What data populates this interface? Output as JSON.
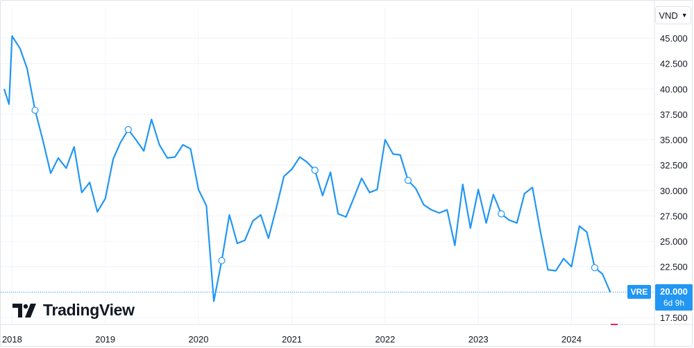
{
  "currency": {
    "label": "VND",
    "icon": "chevron-down-icon"
  },
  "symbol": "VRE",
  "last_price": {
    "value": "20.000",
    "countdown": "6d 9h"
  },
  "logo": {
    "text": "TradingView",
    "icon": "tradingview-logo-icon"
  },
  "colors": {
    "line": "#2196f3",
    "price_tag": "#2196f3",
    "marker_fill": "#ffffff",
    "text": "#131722",
    "grid": "#f0f3fa"
  },
  "chart_data": {
    "type": "line",
    "title": "",
    "xlabel": "",
    "ylabel": "",
    "y_ticks": [
      "45.000",
      "42.500",
      "40.000",
      "37.500",
      "35.000",
      "32.500",
      "30.000",
      "27.500",
      "25.000",
      "22.500",
      "20.000",
      "17.500"
    ],
    "x_ticks": [
      "2018",
      "2019",
      "2020",
      "2021",
      "2022",
      "2023",
      "2024"
    ],
    "x_range": [
      "2017-12-01",
      "2024-08-15"
    ],
    "ylim": [
      16700,
      46800
    ],
    "grid": true,
    "last_value": 20000,
    "series": [
      {
        "points": [
          [
            "2017-12-01",
            40000
          ],
          [
            "2017-12-20",
            38500
          ],
          [
            "2018-01-01",
            45200
          ],
          [
            "2018-02-01",
            44000
          ],
          [
            "2018-03-01",
            42000
          ],
          [
            "2018-04-01",
            37900
          ],
          [
            "2018-05-01",
            35000
          ],
          [
            "2018-06-01",
            31700
          ],
          [
            "2018-07-01",
            33200
          ],
          [
            "2018-08-01",
            32200
          ],
          [
            "2018-09-01",
            34300
          ],
          [
            "2018-10-01",
            29800
          ],
          [
            "2018-11-01",
            30800
          ],
          [
            "2018-12-01",
            27900
          ],
          [
            "2019-01-01",
            29200
          ],
          [
            "2019-02-01",
            33100
          ],
          [
            "2019-03-01",
            34700
          ],
          [
            "2019-04-01",
            36000
          ],
          [
            "2019-05-01",
            35000
          ],
          [
            "2019-06-01",
            33900
          ],
          [
            "2019-07-01",
            37000
          ],
          [
            "2019-08-01",
            34500
          ],
          [
            "2019-09-01",
            33200
          ],
          [
            "2019-10-01",
            33300
          ],
          [
            "2019-11-01",
            34500
          ],
          [
            "2019-12-01",
            34100
          ],
          [
            "2020-01-01",
            30100
          ],
          [
            "2020-02-01",
            28500
          ],
          [
            "2020-03-01",
            19100
          ],
          [
            "2020-04-01",
            23100
          ],
          [
            "2020-05-01",
            27600
          ],
          [
            "2020-06-01",
            24800
          ],
          [
            "2020-07-01",
            25100
          ],
          [
            "2020-08-01",
            27000
          ],
          [
            "2020-09-01",
            27600
          ],
          [
            "2020-10-01",
            25300
          ],
          [
            "2020-11-01",
            28300
          ],
          [
            "2020-12-01",
            31400
          ],
          [
            "2021-01-01",
            32100
          ],
          [
            "2021-02-01",
            33300
          ],
          [
            "2021-03-01",
            32800
          ],
          [
            "2021-04-01",
            32000
          ],
          [
            "2021-05-01",
            29500
          ],
          [
            "2021-06-01",
            31800
          ],
          [
            "2021-07-01",
            27700
          ],
          [
            "2021-08-01",
            27400
          ],
          [
            "2021-09-01",
            29300
          ],
          [
            "2021-10-01",
            31200
          ],
          [
            "2021-11-01",
            29800
          ],
          [
            "2021-12-01",
            30100
          ],
          [
            "2022-01-01",
            35000
          ],
          [
            "2022-02-01",
            33600
          ],
          [
            "2022-03-01",
            33500
          ],
          [
            "2022-04-01",
            31000
          ],
          [
            "2022-05-01",
            30200
          ],
          [
            "2022-06-01",
            28600
          ],
          [
            "2022-07-01",
            28100
          ],
          [
            "2022-08-01",
            27800
          ],
          [
            "2022-09-01",
            28100
          ],
          [
            "2022-10-01",
            24600
          ],
          [
            "2022-11-01",
            30600
          ],
          [
            "2022-12-01",
            26300
          ],
          [
            "2023-01-01",
            30100
          ],
          [
            "2023-02-01",
            26800
          ],
          [
            "2023-03-01",
            29600
          ],
          [
            "2023-04-01",
            27700
          ],
          [
            "2023-05-01",
            27100
          ],
          [
            "2023-06-01",
            26800
          ],
          [
            "2023-07-01",
            29700
          ],
          [
            "2023-08-01",
            30300
          ],
          [
            "2023-09-01",
            26000
          ],
          [
            "2023-10-01",
            22200
          ],
          [
            "2023-11-01",
            22100
          ],
          [
            "2023-12-01",
            23300
          ],
          [
            "2024-01-01",
            22500
          ],
          [
            "2024-02-01",
            26500
          ],
          [
            "2024-03-01",
            25900
          ],
          [
            "2024-04-01",
            22400
          ],
          [
            "2024-05-01",
            21800
          ],
          [
            "2024-06-01",
            20000
          ]
        ]
      }
    ],
    "markers": [
      [
        "2018-04-01",
        37900
      ],
      [
        "2019-04-01",
        36000
      ],
      [
        "2020-04-01",
        23100
      ],
      [
        "2021-04-01",
        32000
      ],
      [
        "2022-04-01",
        31000
      ],
      [
        "2023-04-01",
        27700
      ],
      [
        "2024-04-01",
        22400
      ]
    ]
  }
}
